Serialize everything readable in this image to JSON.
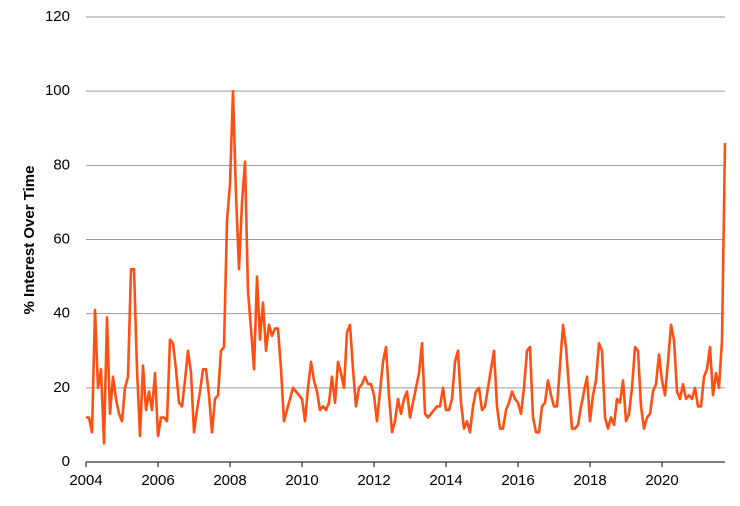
{
  "chart_data": {
    "type": "line",
    "y_label": "% Interest Over Time",
    "color": "#ff4f12",
    "grid": true,
    "xlim": [
      2004,
      2021.75
    ],
    "xticks": [
      2004,
      2006,
      2008,
      2010,
      2012,
      2014,
      2016,
      2018,
      2020
    ],
    "ylim": [
      0,
      120
    ],
    "yticks": [
      0,
      20,
      40,
      60,
      80,
      100,
      120
    ],
    "x": [
      2004.0,
      2004.083,
      2004.167,
      2004.25,
      2004.333,
      2004.417,
      2004.5,
      2004.583,
      2004.667,
      2004.75,
      2004.833,
      2004.917,
      2005.0,
      2005.083,
      2005.167,
      2005.25,
      2005.333,
      2005.417,
      2005.5,
      2005.583,
      2005.667,
      2005.75,
      2005.833,
      2005.917,
      2006.0,
      2006.083,
      2006.167,
      2006.25,
      2006.333,
      2006.417,
      2006.5,
      2006.583,
      2006.667,
      2006.75,
      2006.833,
      2006.917,
      2007.0,
      2007.083,
      2007.167,
      2007.25,
      2007.333,
      2007.417,
      2007.5,
      2007.583,
      2007.667,
      2007.75,
      2007.833,
      2007.917,
      2008.0,
      2008.083,
      2008.167,
      2008.25,
      2008.333,
      2008.417,
      2008.5,
      2008.583,
      2008.667,
      2008.75,
      2008.833,
      2008.917,
      2009.0,
      2009.083,
      2009.167,
      2009.25,
      2009.333,
      2009.417,
      2009.5,
      2009.583,
      2009.667,
      2009.75,
      2009.833,
      2009.917,
      2010.0,
      2010.083,
      2010.167,
      2010.25,
      2010.333,
      2010.417,
      2010.5,
      2010.583,
      2010.667,
      2010.75,
      2010.833,
      2010.917,
      2011.0,
      2011.083,
      2011.167,
      2011.25,
      2011.333,
      2011.417,
      2011.5,
      2011.583,
      2011.667,
      2011.75,
      2011.833,
      2011.917,
      2012.0,
      2012.083,
      2012.167,
      2012.25,
      2012.333,
      2012.417,
      2012.5,
      2012.583,
      2012.667,
      2012.75,
      2012.833,
      2012.917,
      2013.0,
      2013.083,
      2013.167,
      2013.25,
      2013.333,
      2013.417,
      2013.5,
      2013.583,
      2013.667,
      2013.75,
      2013.833,
      2013.917,
      2014.0,
      2014.083,
      2014.167,
      2014.25,
      2014.333,
      2014.417,
      2014.5,
      2014.583,
      2014.667,
      2014.75,
      2014.833,
      2014.917,
      2015.0,
      2015.083,
      2015.167,
      2015.25,
      2015.333,
      2015.417,
      2015.5,
      2015.583,
      2015.667,
      2015.75,
      2015.833,
      2015.917,
      2016.0,
      2016.083,
      2016.167,
      2016.25,
      2016.333,
      2016.417,
      2016.5,
      2016.583,
      2016.667,
      2016.75,
      2016.833,
      2016.917,
      2017.0,
      2017.083,
      2017.167,
      2017.25,
      2017.333,
      2017.417,
      2017.5,
      2017.583,
      2017.667,
      2017.75,
      2017.833,
      2017.917,
      2018.0,
      2018.083,
      2018.167,
      2018.25,
      2018.333,
      2018.417,
      2018.5,
      2018.583,
      2018.667,
      2018.75,
      2018.833,
      2018.917,
      2019.0,
      2019.083,
      2019.167,
      2019.25,
      2019.333,
      2019.417,
      2019.5,
      2019.583,
      2019.667,
      2019.75,
      2019.833,
      2019.917,
      2020.0,
      2020.083,
      2020.167,
      2020.25,
      2020.333,
      2020.417,
      2020.5,
      2020.583,
      2020.667,
      2020.75,
      2020.833,
      2020.917,
      2021.0,
      2021.083,
      2021.167,
      2021.25,
      2021.333,
      2021.417,
      2021.5,
      2021.583,
      2021.667,
      2021.75
    ],
    "values": [
      12,
      12,
      8,
      41,
      20,
      25,
      5,
      39,
      13,
      23,
      17,
      13,
      11,
      20,
      23,
      52,
      52,
      25,
      7,
      26,
      14,
      19,
      14,
      24,
      7,
      12,
      12,
      11,
      33,
      32,
      25,
      16,
      15,
      22,
      30,
      24,
      8,
      14,
      19,
      25,
      25,
      18,
      8,
      17,
      18,
      30,
      31,
      65,
      75,
      100,
      72,
      52,
      70,
      81,
      46,
      36,
      25,
      50,
      33,
      43,
      30,
      37,
      34,
      36,
      36,
      25,
      11,
      14,
      17,
      20,
      19,
      18,
      17,
      11,
      20,
      27,
      22,
      19,
      14,
      15,
      14,
      16,
      23,
      16,
      27,
      24,
      20,
      35,
      37,
      25,
      15,
      20,
      21,
      23,
      21,
      21,
      18,
      11,
      19,
      27,
      31,
      18,
      8,
      11,
      17,
      13,
      17,
      19,
      12,
      16,
      20,
      24,
      32,
      13,
      12,
      13,
      14,
      15,
      15,
      20,
      14,
      14,
      17,
      27,
      30,
      16,
      9,
      11,
      8,
      15,
      19,
      20,
      14,
      15,
      20,
      25,
      30,
      15,
      9,
      9,
      14,
      16,
      19,
      17,
      16,
      13,
      20,
      30,
      31,
      12,
      8,
      8,
      15,
      16,
      22,
      18,
      15,
      15,
      26,
      37,
      31,
      20,
      9,
      9,
      10,
      15,
      19,
      23,
      11,
      18,
      22,
      32,
      30,
      12,
      9,
      12,
      10,
      17,
      16,
      22,
      11,
      13,
      20,
      31,
      30,
      15,
      9,
      12,
      13,
      19,
      21,
      29,
      22,
      18,
      27,
      37,
      33,
      19,
      17,
      21,
      17,
      18,
      17,
      20,
      15,
      15,
      23,
      25,
      31,
      18,
      24,
      20,
      33,
      86
    ]
  }
}
